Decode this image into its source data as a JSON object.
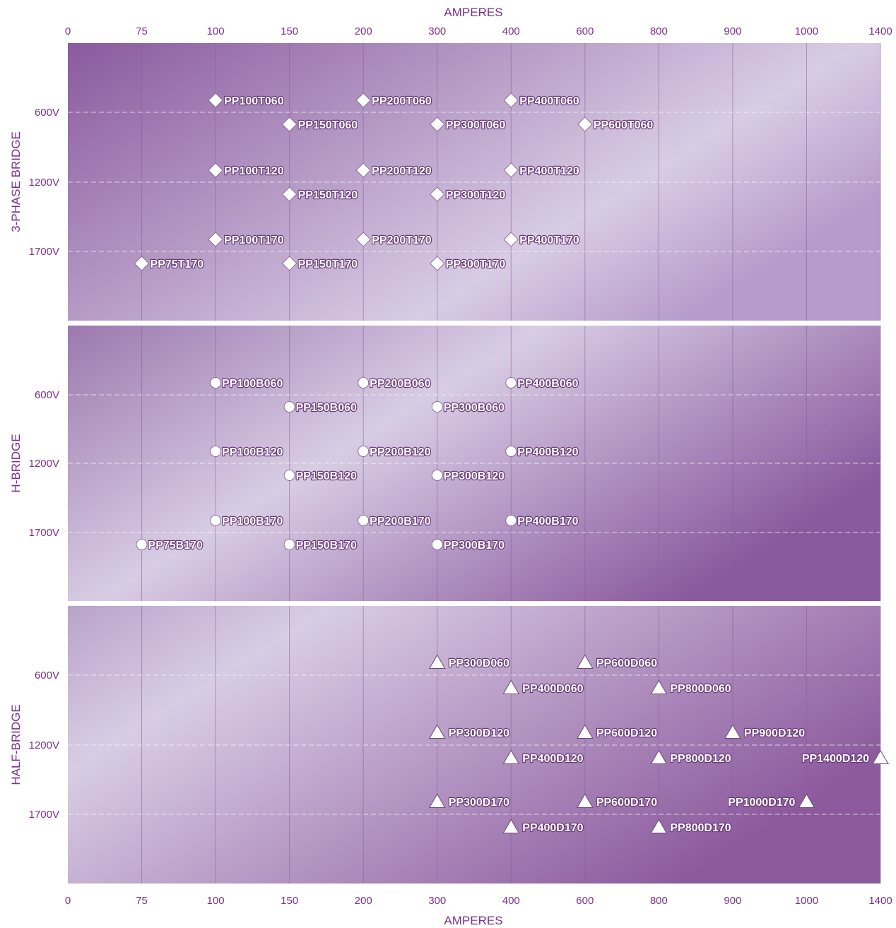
{
  "chart_data": {
    "type": "scatter",
    "x_axis": {
      "title": "AMPERES",
      "scale": "categorical",
      "ticks": [
        "0",
        "75",
        "100",
        "150",
        "200",
        "300",
        "400",
        "600",
        "800",
        "900",
        "1000",
        "1400"
      ]
    },
    "y_axis": {
      "ticks": [
        "600V",
        "1200V",
        "1700V"
      ]
    },
    "grid": true,
    "colors": {
      "accent": "#7a2f8c",
      "panel_dark": "#8a5a9e",
      "panel_light": "#d8cce4",
      "marker": "#ffffff"
    },
    "panels": [
      {
        "title": "3-PHASE BRIDGE",
        "marker": "diamond",
        "points": [
          {
            "label": "PP100T060",
            "amps": "100",
            "volts": "600V",
            "offset": "above"
          },
          {
            "label": "PP200T060",
            "amps": "200",
            "volts": "600V",
            "offset": "above"
          },
          {
            "label": "PP400T060",
            "amps": "400",
            "volts": "600V",
            "offset": "above"
          },
          {
            "label": "PP150T060",
            "amps": "150",
            "volts": "600V",
            "offset": "below"
          },
          {
            "label": "PP300T060",
            "amps": "300",
            "volts": "600V",
            "offset": "below"
          },
          {
            "label": "PP600T060",
            "amps": "600",
            "volts": "600V",
            "offset": "below"
          },
          {
            "label": "PP100T120",
            "amps": "100",
            "volts": "1200V",
            "offset": "above"
          },
          {
            "label": "PP200T120",
            "amps": "200",
            "volts": "1200V",
            "offset": "above"
          },
          {
            "label": "PP400T120",
            "amps": "400",
            "volts": "1200V",
            "offset": "above"
          },
          {
            "label": "PP150T120",
            "amps": "150",
            "volts": "1200V",
            "offset": "below"
          },
          {
            "label": "PP300T120",
            "amps": "300",
            "volts": "1200V",
            "offset": "below"
          },
          {
            "label": "PP100T170",
            "amps": "100",
            "volts": "1700V",
            "offset": "above"
          },
          {
            "label": "PP200T170",
            "amps": "200",
            "volts": "1700V",
            "offset": "above"
          },
          {
            "label": "PP400T170",
            "amps": "400",
            "volts": "1700V",
            "offset": "above"
          },
          {
            "label": "PP75T170",
            "amps": "75",
            "volts": "1700V",
            "offset": "below"
          },
          {
            "label": "PP150T170",
            "amps": "150",
            "volts": "1700V",
            "offset": "below"
          },
          {
            "label": "PP300T170",
            "amps": "300",
            "volts": "1700V",
            "offset": "below"
          }
        ]
      },
      {
        "title": "H-BRIDGE",
        "marker": "circle",
        "points": [
          {
            "label": "PP100B060",
            "amps": "100",
            "volts": "600V",
            "offset": "above"
          },
          {
            "label": "PP200B060",
            "amps": "200",
            "volts": "600V",
            "offset": "above"
          },
          {
            "label": "PP400B060",
            "amps": "400",
            "volts": "600V",
            "offset": "above"
          },
          {
            "label": "PP150B060",
            "amps": "150",
            "volts": "600V",
            "offset": "below"
          },
          {
            "label": "PP300B060",
            "amps": "300",
            "volts": "600V",
            "offset": "below"
          },
          {
            "label": "PP100B120",
            "amps": "100",
            "volts": "1200V",
            "offset": "above"
          },
          {
            "label": "PP200B120",
            "amps": "200",
            "volts": "1200V",
            "offset": "above"
          },
          {
            "label": "PP400B120",
            "amps": "400",
            "volts": "1200V",
            "offset": "above"
          },
          {
            "label": "PP150B120",
            "amps": "150",
            "volts": "1200V",
            "offset": "below"
          },
          {
            "label": "PP300B120",
            "amps": "300",
            "volts": "1200V",
            "offset": "below"
          },
          {
            "label": "PP100B170",
            "amps": "100",
            "volts": "1700V",
            "offset": "above"
          },
          {
            "label": "PP200B170",
            "amps": "200",
            "volts": "1700V",
            "offset": "above"
          },
          {
            "label": "PP400B170",
            "amps": "400",
            "volts": "1700V",
            "offset": "above"
          },
          {
            "label": "PP75B170",
            "amps": "75",
            "volts": "1700V",
            "offset": "below"
          },
          {
            "label": "PP150B170",
            "amps": "150",
            "volts": "1700V",
            "offset": "below"
          },
          {
            "label": "PP300B170",
            "amps": "300",
            "volts": "1700V",
            "offset": "below"
          }
        ]
      },
      {
        "title": "HALF-BRIDGE",
        "marker": "triangle",
        "points": [
          {
            "label": "PP300D060",
            "amps": "300",
            "volts": "600V",
            "offset": "above"
          },
          {
            "label": "PP600D060",
            "amps": "600",
            "volts": "600V",
            "offset": "above"
          },
          {
            "label": "PP400D060",
            "amps": "400",
            "volts": "600V",
            "offset": "below"
          },
          {
            "label": "PP800D060",
            "amps": "800",
            "volts": "600V",
            "offset": "below"
          },
          {
            "label": "PP300D120",
            "amps": "300",
            "volts": "1200V",
            "offset": "above"
          },
          {
            "label": "PP600D120",
            "amps": "600",
            "volts": "1200V",
            "offset": "above"
          },
          {
            "label": "PP900D120",
            "amps": "900",
            "volts": "1200V",
            "offset": "above"
          },
          {
            "label": "PP400D120",
            "amps": "400",
            "volts": "1200V",
            "offset": "below"
          },
          {
            "label": "PP800D120",
            "amps": "800",
            "volts": "1200V",
            "offset": "below"
          },
          {
            "label": "PP1400D120",
            "amps": "1400",
            "volts": "1200V",
            "offset": "below",
            "label_side": "left"
          },
          {
            "label": "PP300D170",
            "amps": "300",
            "volts": "1700V",
            "offset": "above"
          },
          {
            "label": "PP600D170",
            "amps": "600",
            "volts": "1700V",
            "offset": "above"
          },
          {
            "label": "PP1000D170",
            "amps": "1000",
            "volts": "1700V",
            "offset": "above",
            "label_side": "left"
          },
          {
            "label": "PP400D170",
            "amps": "400",
            "volts": "1700V",
            "offset": "below"
          },
          {
            "label": "PP800D170",
            "amps": "800",
            "volts": "1700V",
            "offset": "below"
          }
        ]
      }
    ]
  }
}
